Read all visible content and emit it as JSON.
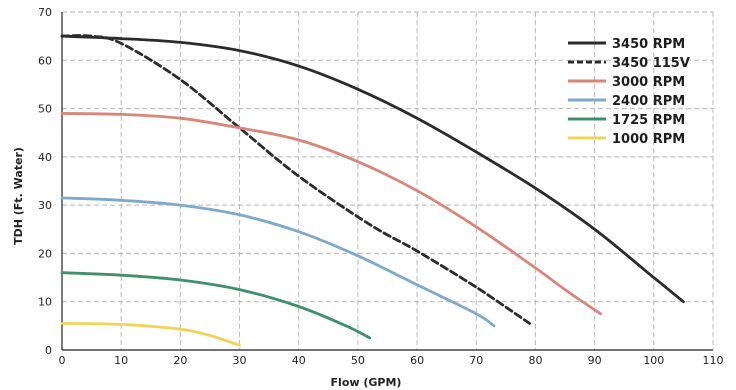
{
  "chart_data": {
    "type": "line",
    "title": "",
    "xlabel": "Flow (GPM)",
    "ylabel": "TDH (Ft. Water)",
    "xlim": [
      0,
      110
    ],
    "ylim": [
      0,
      70
    ],
    "xticks": [
      0,
      10,
      20,
      30,
      40,
      50,
      60,
      70,
      80,
      90,
      100,
      110
    ],
    "yticks": [
      0,
      10,
      20,
      30,
      40,
      50,
      60,
      70
    ],
    "grid": true,
    "legend_position": "top-right",
    "series": [
      {
        "name": "3450 RPM",
        "color": "#2b2b2b",
        "dash": "solid",
        "x": [
          0,
          10,
          20,
          30,
          40,
          50,
          60,
          70,
          80,
          90,
          100,
          105
        ],
        "y": [
          65,
          64.5,
          63.7,
          62,
          58.8,
          54,
          48,
          41,
          33.5,
          25,
          15,
          10
        ]
      },
      {
        "name": "3450 115V",
        "color": "#2b2b2b",
        "dash": "dashed",
        "x": [
          0,
          5,
          10,
          20,
          30,
          40,
          52,
          60,
          70,
          79
        ],
        "y": [
          65,
          65,
          63.5,
          56,
          46,
          36,
          26,
          20.5,
          13,
          5.5
        ]
      },
      {
        "name": "3000 RPM",
        "color": "#d98579",
        "dash": "solid",
        "x": [
          0,
          10,
          20,
          30,
          40,
          50,
          60,
          70,
          80,
          85,
          91
        ],
        "y": [
          49,
          48.8,
          48,
          46,
          43.5,
          39,
          33,
          25.5,
          17,
          12.5,
          7.5
        ]
      },
      {
        "name": "2400 RPM",
        "color": "#7ea9cc",
        "dash": "solid",
        "x": [
          0,
          10,
          20,
          30,
          40,
          50,
          60,
          70,
          73
        ],
        "y": [
          31.5,
          31,
          30,
          28,
          24.5,
          19.5,
          13.5,
          7.5,
          5
        ]
      },
      {
        "name": "1725 RPM",
        "color": "#3f8f6a",
        "dash": "solid",
        "x": [
          0,
          10,
          20,
          30,
          40,
          48,
          52
        ],
        "y": [
          16,
          15.5,
          14.5,
          12.5,
          9,
          5,
          2.5
        ]
      },
      {
        "name": "1000 RPM",
        "color": "#f0d45a",
        "dash": "solid",
        "x": [
          0,
          10,
          20,
          25,
          30
        ],
        "y": [
          5.5,
          5.3,
          4.3,
          3,
          1
        ]
      }
    ]
  }
}
